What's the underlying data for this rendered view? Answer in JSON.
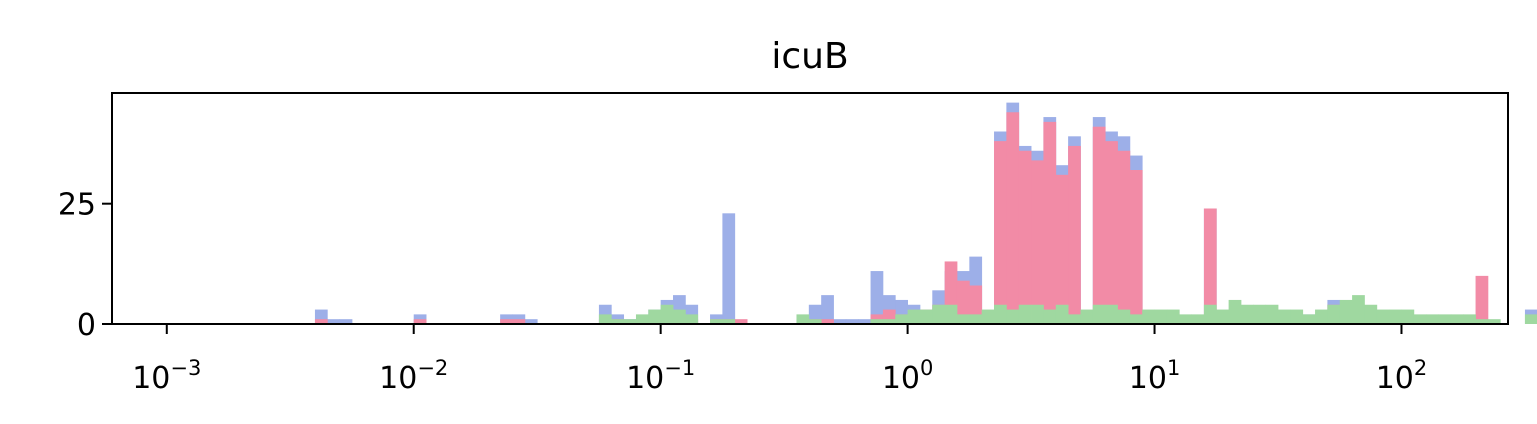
{
  "chart_data": {
    "type": "bar",
    "subtype": "overlapping-histogram",
    "title": "icuB",
    "xlabel": "",
    "ylabel": "",
    "x_scale": "log",
    "xlim": [
      0.0006,
      270
    ],
    "ylim": [
      0,
      48
    ],
    "x_ticks": [
      {
        "base": "10",
        "exp": "−3",
        "value": 0.001
      },
      {
        "base": "10",
        "exp": "−2",
        "value": 0.01
      },
      {
        "base": "10",
        "exp": "−1",
        "value": 0.1
      },
      {
        "base": "10",
        "exp": "0",
        "value": 1
      },
      {
        "base": "10",
        "exp": "1",
        "value": 10
      },
      {
        "base": "10",
        "exp": "2",
        "value": 100
      }
    ],
    "y_ticks": [
      {
        "label": "0",
        "value": 0
      },
      {
        "label": "25",
        "value": 25
      }
    ],
    "grid": false,
    "legend": "none",
    "bins_log10_start": -2.4,
    "bins_log10_width": 0.05,
    "series": [
      {
        "color": "#9dafe8",
        "counts": [
          3,
          1,
          1,
          0,
          0,
          0,
          0,
          0,
          2,
          0,
          0,
          0,
          0,
          0,
          0,
          2,
          2,
          1,
          0,
          0,
          0,
          0,
          0,
          4,
          2,
          1,
          1,
          3,
          5,
          6,
          4,
          0,
          2,
          23,
          0,
          0,
          0,
          0,
          0,
          1,
          4,
          6,
          1,
          1,
          1,
          11,
          6,
          5,
          4,
          3,
          7,
          11,
          11,
          14,
          0,
          40,
          46,
          37,
          36,
          43,
          33,
          39,
          0,
          43,
          40,
          39,
          35,
          0,
          0,
          0,
          0,
          0,
          24,
          0,
          0,
          0,
          0,
          0,
          0,
          0,
          2,
          1,
          5,
          1,
          1,
          3,
          0,
          0,
          0,
          0,
          0,
          0,
          0,
          0,
          0,
          0,
          0,
          0,
          3,
          0,
          0,
          0,
          0,
          0,
          0,
          0,
          0,
          0,
          0,
          0,
          0,
          0
        ]
      },
      {
        "color": "#f28ba6",
        "counts": [
          1,
          0,
          0,
          0,
          0,
          0,
          0,
          0,
          1,
          0,
          0,
          0,
          0,
          0,
          0,
          1,
          1,
          0,
          0,
          0,
          0,
          0,
          0,
          1,
          1,
          0,
          0,
          1,
          2,
          2,
          1,
          0,
          1,
          1,
          1,
          0,
          0,
          0,
          0,
          0,
          1,
          1,
          0,
          0,
          0,
          2,
          3,
          2,
          2,
          3,
          4,
          13,
          9,
          8,
          0,
          38,
          44,
          36,
          34,
          42,
          31,
          37,
          0,
          41,
          38,
          36,
          32,
          0,
          0,
          0,
          0,
          0,
          24,
          0,
          0,
          0,
          0,
          0,
          0,
          0,
          1,
          0,
          4,
          1,
          1,
          2,
          1,
          1,
          0,
          0,
          0,
          0,
          0,
          0,
          10,
          0,
          0,
          0,
          0,
          1,
          0,
          0,
          0,
          0,
          1,
          0,
          0,
          0,
          0,
          0,
          0,
          0
        ]
      },
      {
        "color": "#9fd8a0",
        "counts": [
          0,
          0,
          0,
          0,
          0,
          0,
          0,
          0,
          0,
          0,
          0,
          0,
          0,
          0,
          0,
          0,
          0,
          0,
          0,
          0,
          0,
          0,
          0,
          2,
          1,
          1,
          2,
          3,
          4,
          3,
          2,
          0,
          1,
          1,
          0,
          0,
          0,
          0,
          0,
          2,
          1,
          0,
          0,
          0,
          0,
          1,
          1,
          2,
          3,
          3,
          4,
          4,
          2,
          2,
          3,
          4,
          3,
          4,
          4,
          3,
          4,
          2,
          3,
          4,
          4,
          3,
          2,
          3,
          3,
          3,
          2,
          2,
          4,
          3,
          5,
          4,
          4,
          4,
          3,
          3,
          2,
          3,
          4,
          5,
          6,
          4,
          3,
          3,
          3,
          2,
          2,
          2,
          2,
          2,
          1,
          1,
          0,
          0,
          2,
          0,
          0,
          0,
          0,
          0,
          0,
          0,
          0,
          0,
          0,
          0,
          0,
          0
        ]
      }
    ]
  }
}
